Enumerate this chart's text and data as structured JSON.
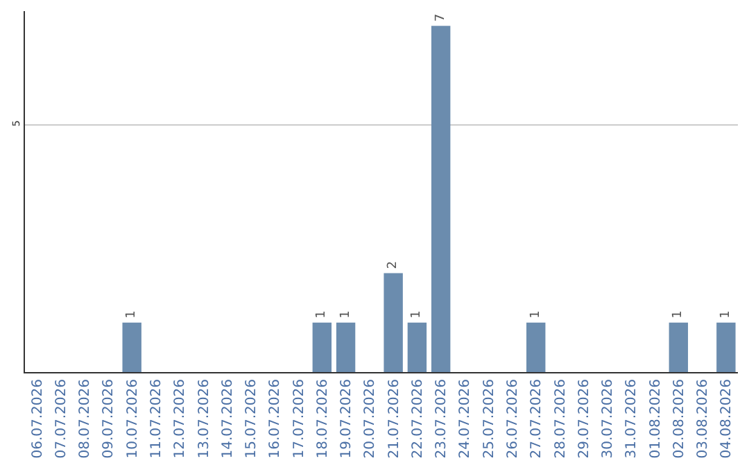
{
  "chart_data": {
    "type": "bar",
    "categories": [
      "06.07.2026",
      "07.07.2026",
      "08.07.2026",
      "09.07.2026",
      "10.07.2026",
      "11.07.2026",
      "12.07.2026",
      "13.07.2026",
      "14.07.2026",
      "15.07.2026",
      "16.07.2026",
      "17.07.2026",
      "18.07.2026",
      "19.07.2026",
      "20.07.2026",
      "21.07.2026",
      "22.07.2026",
      "23.07.2026",
      "24.07.2026",
      "25.07.2026",
      "26.07.2026",
      "27.07.2026",
      "28.07.2026",
      "29.07.2026",
      "30.07.2026",
      "31.07.2026",
      "01.08.2026",
      "02.08.2026",
      "03.08.2026",
      "04.08.2026"
    ],
    "values": [
      0,
      0,
      0,
      0,
      1,
      0,
      0,
      0,
      0,
      0,
      0,
      0,
      1,
      1,
      0,
      2,
      1,
      7,
      0,
      0,
      0,
      1,
      0,
      0,
      0,
      0,
      0,
      1,
      0,
      1
    ],
    "value_labels": [
      null,
      null,
      null,
      null,
      "1",
      null,
      null,
      null,
      null,
      null,
      null,
      null,
      "1",
      "1",
      null,
      "2",
      "1",
      "7",
      null,
      null,
      null,
      "1",
      null,
      null,
      null,
      null,
      null,
      "1",
      null,
      "1"
    ],
    "color": "#6b8cae",
    "ylim": [
      0,
      7.3
    ],
    "yticks": [
      5
    ],
    "grid": "y"
  }
}
